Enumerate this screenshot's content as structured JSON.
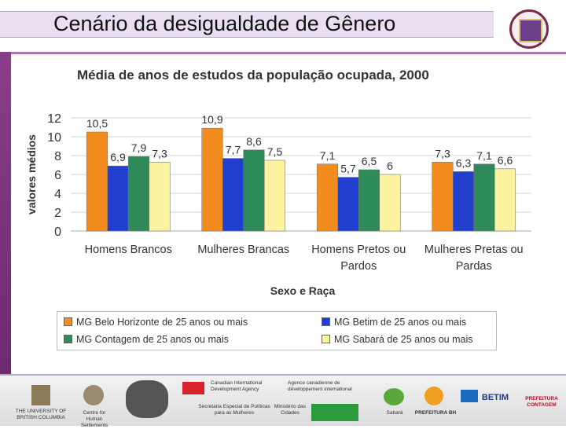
{
  "slide": {
    "title": "Cenário da desigualdade de Gênero"
  },
  "chart_data": {
    "type": "bar",
    "title": "Média de anos de estudos da população ocupada, 2000",
    "xlabel": "Sexo e Raça",
    "ylabel": "valores médios",
    "ylim": [
      0,
      12
    ],
    "yticks": [
      0,
      2,
      4,
      6,
      8,
      10,
      12
    ],
    "grid": true,
    "legend_position": "bottom",
    "categories": [
      [
        "Homens Brancos"
      ],
      [
        "Mulheres Brancas"
      ],
      [
        "Homens Pretos ou",
        "Pardos"
      ],
      [
        "Mulheres Pretas ou",
        "Pardas"
      ]
    ],
    "series": [
      {
        "name": "MG Belo Horizonte de 25 anos ou mais",
        "color": "#f28c1e",
        "values": [
          10.5,
          10.9,
          7.1,
          7.3
        ],
        "labels": [
          "10,5",
          "10,9",
          "7,1",
          "7,3"
        ]
      },
      {
        "name": "MG Betim de 25 anos ou mais",
        "color": "#1f3fcc",
        "values": [
          6.9,
          7.7,
          5.7,
          6.3
        ],
        "labels": [
          "6,9",
          "7,7",
          "5,7",
          "6,3"
        ]
      },
      {
        "name": "MG Contagem de 25 anos ou mais",
        "color": "#2f8a5a",
        "values": [
          7.9,
          8.6,
          6.5,
          7.1
        ],
        "labels": [
          "7,9",
          "8,6",
          "6,5",
          "7,1"
        ]
      },
      {
        "name": "MG Sabará de 25 anos ou mais",
        "color": "#fbf3a0",
        "values": [
          7.3,
          7.5,
          6.0,
          6.6
        ],
        "labels": [
          "7,3",
          "7,5",
          "6",
          "6,6"
        ]
      }
    ]
  },
  "footer": {
    "logos": [
      {
        "name": "ubc",
        "text": "THE UNIVERSITY OF BRITISH COLUMBIA"
      },
      {
        "name": "centre",
        "text": "Centre for Human Settlements"
      },
      {
        "name": "cida",
        "text": "Canadian International Development Agency"
      },
      {
        "name": "acdi",
        "text": "Agence canadienne de développement international"
      },
      {
        "name": "secretaria",
        "text": "Secretaria Especial de Políticas para as Mulheres"
      },
      {
        "name": "ministerio",
        "text": "Ministério das Cidades"
      },
      {
        "name": "sabara",
        "text": "Sabará"
      },
      {
        "name": "pbh",
        "text": "PREFEITURA BH"
      },
      {
        "name": "betim",
        "text": "BETIM"
      },
      {
        "name": "contagem",
        "text": "PREFEITURA CONTAGEM"
      }
    ]
  }
}
